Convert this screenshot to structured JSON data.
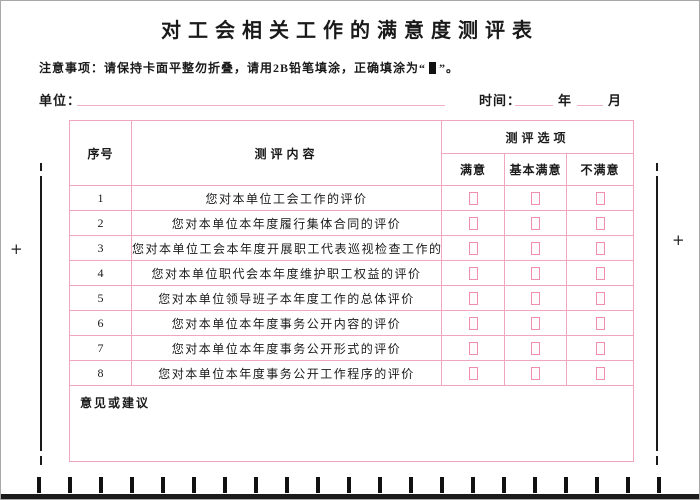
{
  "form": {
    "title": "对工会相关工作的满意度测评表",
    "notice_prefix": "注意事项：请保持卡面平整勿折叠，请用2B铅笔填涂，正确填涂为“",
    "notice_suffix": "”。",
    "unit_label": "单位：",
    "unit_value": "",
    "time_label": "时间：",
    "year_value": "",
    "year_suffix": "年",
    "month_value": "",
    "month_suffix": "月"
  },
  "table": {
    "col_index": "序号",
    "col_content": "测评内容",
    "col_options_group": "测评选项",
    "col_options": [
      "满意",
      "基本满意",
      "不满意"
    ],
    "rows": [
      {
        "no": "1",
        "content": "您对本单位工会工作的评价"
      },
      {
        "no": "2",
        "content": "您对本单位本年度履行集体合同的评价"
      },
      {
        "no": "3",
        "content": "您对本单位工会本年度开展职工代表巡视检查工作的评价"
      },
      {
        "no": "4",
        "content": "您对本单位职代会本年度维护职工权益的评价"
      },
      {
        "no": "5",
        "content": "您对本单位领导班子本年度工作的总体评价"
      },
      {
        "no": "6",
        "content": "您对本单位本年度事务公开内容的评价"
      },
      {
        "no": "7",
        "content": "您对本单位本年度事务公开形式的评价"
      },
      {
        "no": "8",
        "content": "您对本单位本年度事务公开工作程序的评价"
      }
    ],
    "suggestion_label": "意见或建议"
  },
  "marks": {
    "plus": "+",
    "bottom_timing_mark_count": 21
  },
  "colors": {
    "grid_pink": "#f0a6c0",
    "box_pink": "#ee8fae",
    "underline_pink": "#f2b0c8",
    "edge_magenta": "#ec1e8c",
    "ink_black": "#1a1a1a"
  }
}
